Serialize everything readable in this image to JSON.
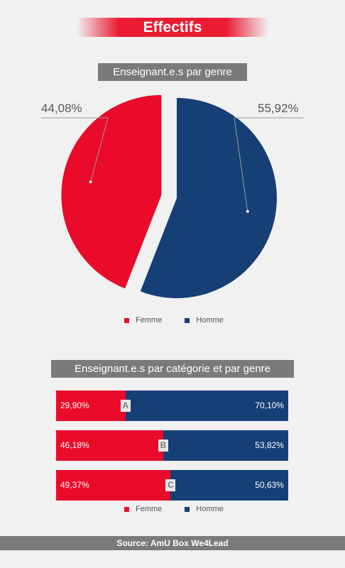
{
  "header": {
    "title": "Effectifs"
  },
  "colors": {
    "femme": "#ea0b2a",
    "homme": "#163f76",
    "title_bg": "#7a7a7a"
  },
  "chart_data": [
    {
      "type": "pie",
      "title": "Enseignant.e.s par genre",
      "categories": [
        "Femme",
        "Homme"
      ],
      "values": [
        44.08,
        55.92
      ],
      "labels": [
        "44,08%",
        "55,92%"
      ],
      "legend": [
        "Femme",
        "Homme"
      ],
      "legend_position": "bottom"
    },
    {
      "type": "bar",
      "stacked": true,
      "orientation": "horizontal",
      "title": "Enseignant.e.s par catégorie et par genre",
      "categories": [
        "A",
        "B",
        "C"
      ],
      "series": [
        {
          "name": "Femme",
          "values": [
            29.9,
            46.18,
            49.37
          ],
          "labels": [
            "29,90%",
            "46,18%",
            "49,37%"
          ]
        },
        {
          "name": "Homme",
          "values": [
            70.1,
            53.82,
            50.63
          ],
          "labels": [
            "70,10%",
            "53,82%",
            "50,63%"
          ]
        }
      ],
      "legend": [
        "Femme",
        "Homme"
      ],
      "legend_position": "bottom"
    }
  ],
  "footer": {
    "source": "Source: AmU Box We4Lead"
  }
}
